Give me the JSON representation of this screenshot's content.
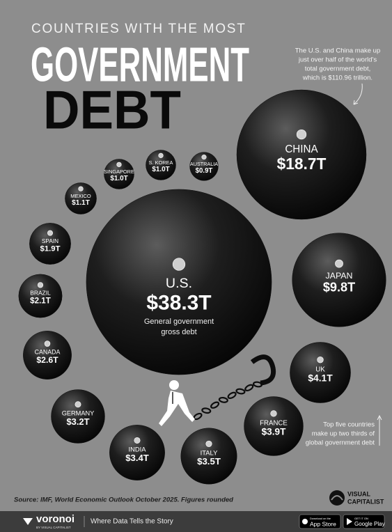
{
  "chart_data": {
    "type": "bubble",
    "title_lines": [
      "COUNTRIES WITH THE MOST",
      "GOVERNMENT",
      "DEBT"
    ],
    "categories": [
      "U.S.",
      "CHINA",
      "JAPAN",
      "UK",
      "FRANCE",
      "ITALY",
      "INDIA",
      "GERMANY",
      "CANADA",
      "BRAZIL",
      "SPAIN",
      "MEXICO",
      "SINGAPORE",
      "S. KOREA",
      "AUSTRALIA"
    ],
    "values": [
      38.3,
      18.7,
      9.8,
      4.1,
      3.9,
      3.5,
      3.4,
      3.2,
      2.6,
      2.1,
      1.9,
      1.1,
      1.0,
      1.0,
      0.9
    ],
    "value_labels": [
      "$38.3T",
      "$18.7T",
      "$9.8T",
      "$4.1T",
      "$3.9T",
      "$3.5T",
      "$3.4T",
      "$3.2T",
      "$2.6T",
      "$2.1T",
      "$1.9T",
      "$1.1T",
      "$1.0T",
      "$1.0T",
      "$0.9T"
    ],
    "color": "#0d0d0d",
    "us_note_lines": [
      "General government",
      "gross debt"
    ],
    "top_note_lines": [
      "The U.S. and China make up",
      "just over half of the world's",
      "total government debt,",
      "which is $110.96 trillion."
    ],
    "bottom_note_lines": [
      "Top five countries",
      "make up two thirds of",
      "global government debt"
    ],
    "source": "Source: IMF, World Economic Outlook October 2025. Figures rounded"
  },
  "brand": {
    "logo_lines": [
      "VISUAL",
      "CAPITALIST"
    ]
  },
  "footer": {
    "brand": "voronoi",
    "brand_sub": "BY VISUAL CAPITALIST",
    "tagline": "Where Data Tells the Story",
    "app_store": [
      "Download on the",
      "App Store"
    ],
    "google_play": [
      "GET IT ON",
      "Google Play"
    ]
  }
}
